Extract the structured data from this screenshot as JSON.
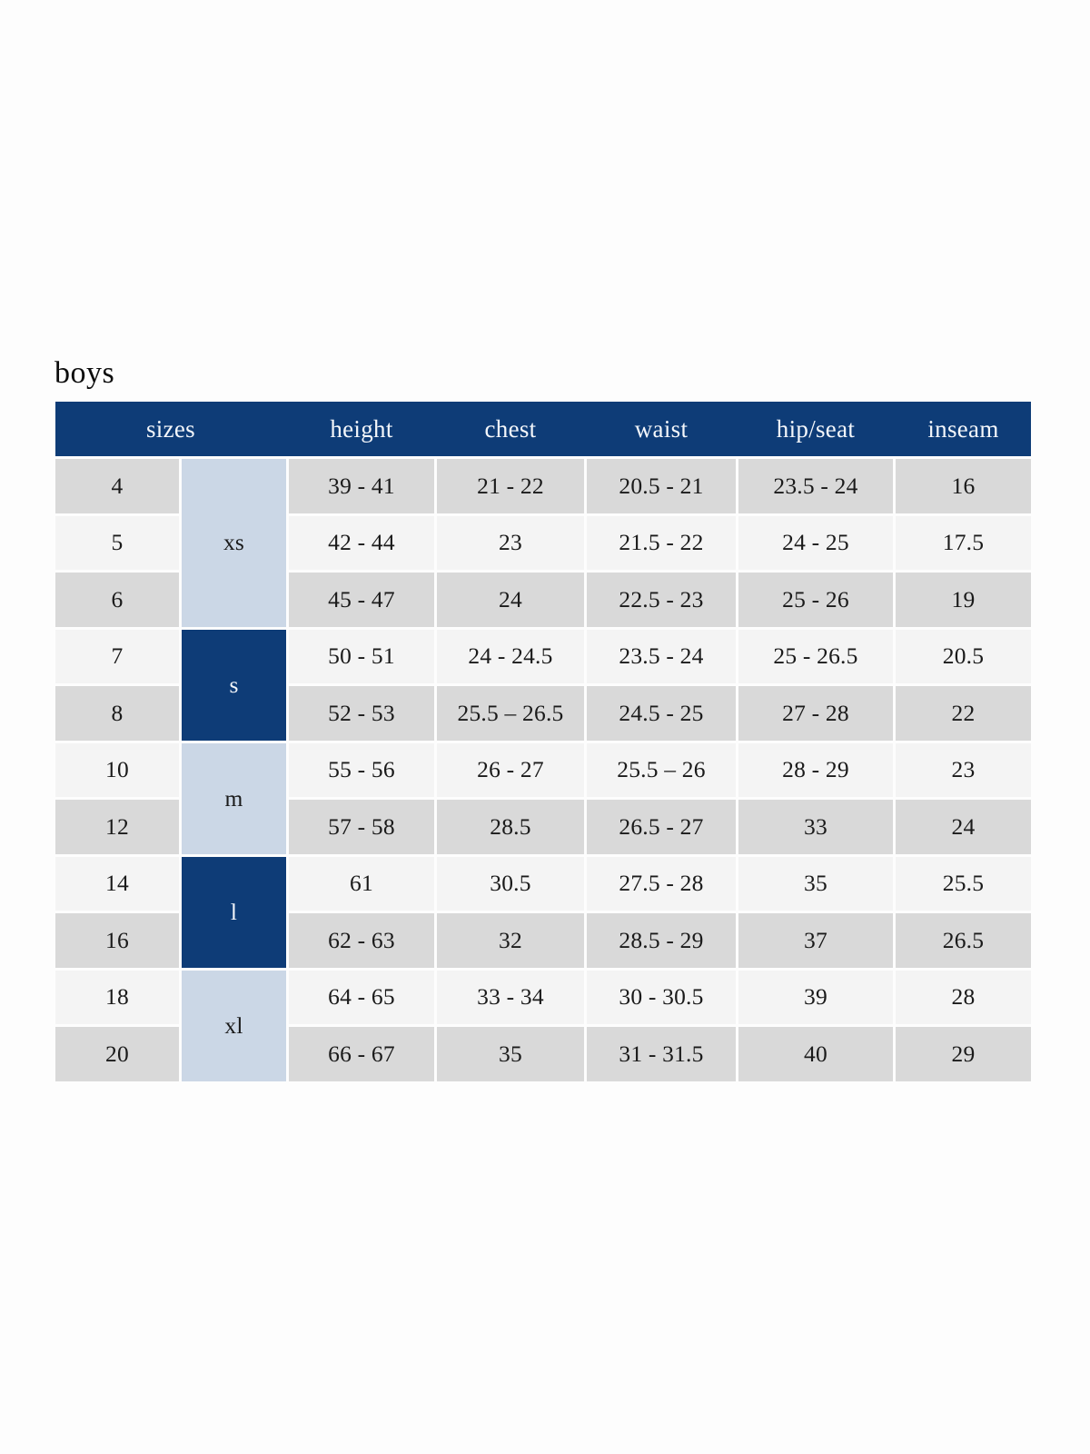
{
  "page": {
    "title": "boys"
  },
  "colors": {
    "navy": "#0e3c77",
    "light_blue": "#cbd7e6",
    "row_dark": "#d9d9d9",
    "row_light": "#f4f4f4",
    "page_bg": "#fdfdfd",
    "text": "#1a1a1a",
    "header_text": "#f4f7fb"
  },
  "table": {
    "headers": [
      "sizes",
      "height",
      "chest",
      "waist",
      "hip/seat",
      "inseam"
    ],
    "size_groups": [
      {
        "label": "xs",
        "rows": 3,
        "style": "light"
      },
      {
        "label": "s",
        "rows": 2,
        "style": "dark"
      },
      {
        "label": "m",
        "rows": 2,
        "style": "light"
      },
      {
        "label": "l",
        "rows": 2,
        "style": "dark"
      },
      {
        "label": "xl",
        "rows": 2,
        "style": "light"
      }
    ],
    "rows": [
      {
        "size": "4",
        "height": "39 - 41",
        "chest": "21 - 22",
        "waist": "20.5 - 21",
        "hip_seat": "23.5 - 24",
        "inseam": "16"
      },
      {
        "size": "5",
        "height": "42 - 44",
        "chest": "23",
        "waist": "21.5 - 22",
        "hip_seat": "24 - 25",
        "inseam": "17.5"
      },
      {
        "size": "6",
        "height": "45 - 47",
        "chest": "24",
        "waist": "22.5 - 23",
        "hip_seat": "25 - 26",
        "inseam": "19"
      },
      {
        "size": "7",
        "height": "50 - 51",
        "chest": "24 - 24.5",
        "waist": "23.5 - 24",
        "hip_seat": "25 - 26.5",
        "inseam": "20.5"
      },
      {
        "size": "8",
        "height": "52 - 53",
        "chest": "25.5 – 26.5",
        "waist": "24.5 - 25",
        "hip_seat": "27 - 28",
        "inseam": "22"
      },
      {
        "size": "10",
        "height": "55 - 56",
        "chest": "26 - 27",
        "waist": "25.5 – 26",
        "hip_seat": "28 - 29",
        "inseam": "23"
      },
      {
        "size": "12",
        "height": "57 - 58",
        "chest": "28.5",
        "waist": "26.5 - 27",
        "hip_seat": "33",
        "inseam": "24"
      },
      {
        "size": "14",
        "height": "61",
        "chest": "30.5",
        "waist": "27.5 - 28",
        "hip_seat": "35",
        "inseam": "25.5"
      },
      {
        "size": "16",
        "height": "62 - 63",
        "chest": "32",
        "waist": "28.5 - 29",
        "hip_seat": "37",
        "inseam": "26.5"
      },
      {
        "size": "18",
        "height": "64 - 65",
        "chest": "33 - 34",
        "waist": "30 - 30.5",
        "hip_seat": "39",
        "inseam": "28"
      },
      {
        "size": "20",
        "height": "66 - 67",
        "chest": "35",
        "waist": "31 - 31.5",
        "hip_seat": "40",
        "inseam": "29"
      }
    ]
  }
}
